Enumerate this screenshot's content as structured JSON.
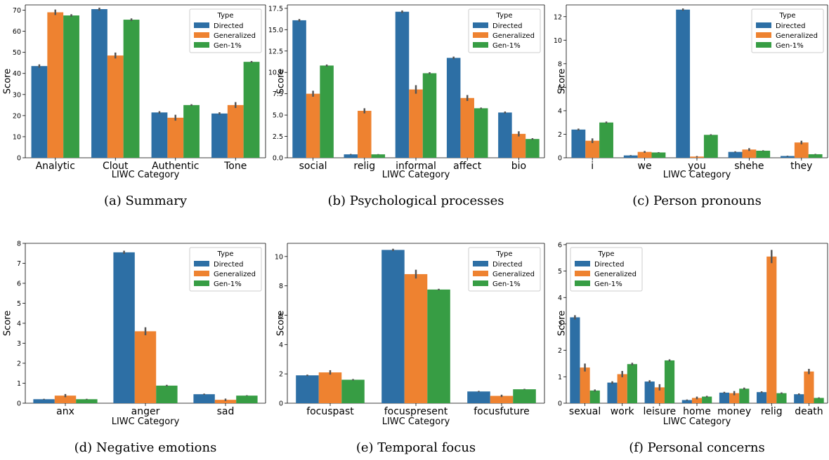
{
  "legend_title": "Type",
  "colors": {
    "Directed": "#2d6fa5",
    "Generalized": "#ee8230",
    "Gen-1%": "#379d44",
    "errorbar": "#555555"
  },
  "chart_data": [
    {
      "type": "bar",
      "caption": "(a) Summary",
      "xlabel": "LIWC Category",
      "ylabel": "Score",
      "categories": [
        "Analytic",
        "Clout",
        "Authentic",
        "Tone"
      ],
      "ylim": [
        0,
        72.5
      ],
      "yticks": [
        0,
        10,
        20,
        30,
        40,
        50,
        60,
        70
      ],
      "ytick_labels": [
        "0",
        "10",
        "20",
        "30",
        "40",
        "50",
        "60",
        "70"
      ],
      "legend_position": "top-right",
      "series": [
        {
          "name": "Directed",
          "values": [
            43.5,
            70.5,
            21.5,
            21.0
          ],
          "errors": [
            0.8,
            0.7,
            0.6,
            0.6
          ]
        },
        {
          "name": "Generalized",
          "values": [
            69.0,
            48.5,
            19.0,
            25.0
          ],
          "errors": [
            1.3,
            1.4,
            1.4,
            1.4
          ]
        },
        {
          "name": "Gen-1%",
          "values": [
            67.5,
            65.5,
            25.0,
            45.5
          ],
          "errors": [
            0.6,
            0.6,
            0.4,
            0.4
          ]
        }
      ]
    },
    {
      "type": "bar",
      "caption": "(b) Psychological processes",
      "xlabel": "LIWC Category",
      "ylabel": "Score",
      "categories": [
        "social",
        "relig",
        "informal",
        "affect",
        "bio"
      ],
      "ylim": [
        0,
        17.9
      ],
      "yticks": [
        0,
        2.5,
        5,
        7.5,
        10,
        12.5,
        15,
        17.5
      ],
      "ytick_labels": [
        "0.0",
        "2.5",
        "5.0",
        "7.5",
        "10.0",
        "12.5",
        "15.0",
        "17.5"
      ],
      "legend_position": "top-right",
      "series": [
        {
          "name": "Directed",
          "values": [
            16.1,
            0.4,
            17.1,
            11.7,
            5.3
          ],
          "errors": [
            0.15,
            0.05,
            0.15,
            0.15,
            0.12
          ]
        },
        {
          "name": "Generalized",
          "values": [
            7.5,
            5.5,
            8.0,
            7.0,
            2.8
          ],
          "errors": [
            0.35,
            0.3,
            0.5,
            0.35,
            0.3
          ]
        },
        {
          "name": "Gen-1%",
          "values": [
            10.8,
            0.4,
            9.9,
            5.8,
            2.2
          ],
          "errors": [
            0.12,
            0.03,
            0.12,
            0.08,
            0.1
          ]
        }
      ]
    },
    {
      "type": "bar",
      "caption": "(c) Person pronouns",
      "xlabel": "LIWC Category",
      "ylabel": "Score",
      "categories": [
        "i",
        "we",
        "you",
        "shehe",
        "they"
      ],
      "ylim": [
        0,
        13.0
      ],
      "yticks": [
        0,
        2,
        4,
        6,
        8,
        10,
        12
      ],
      "ytick_labels": [
        "0",
        "2",
        "4",
        "6",
        "8",
        "10",
        "12"
      ],
      "legend_position": "top-right",
      "series": [
        {
          "name": "Directed",
          "values": [
            2.4,
            0.2,
            12.6,
            0.5,
            0.15
          ],
          "errors": [
            0.08,
            0.03,
            0.1,
            0.05,
            0.03
          ]
        },
        {
          "name": "Generalized",
          "values": [
            1.45,
            0.5,
            0.1,
            0.7,
            1.3
          ],
          "errors": [
            0.2,
            0.08,
            0.05,
            0.12,
            0.15
          ]
        },
        {
          "name": "Gen-1%",
          "values": [
            3.0,
            0.45,
            1.95,
            0.6,
            0.3
          ],
          "errors": [
            0.08,
            0.03,
            0.05,
            0.04,
            0.03
          ]
        }
      ]
    },
    {
      "type": "bar",
      "caption": "(d) Negative emotions",
      "xlabel": "LIWC Category",
      "ylabel": "Score",
      "categories": [
        "anx",
        "anger",
        "sad"
      ],
      "ylim": [
        0,
        8.0
      ],
      "yticks": [
        0,
        1,
        2,
        3,
        4,
        5,
        6,
        7,
        8
      ],
      "ytick_labels": [
        "0",
        "1",
        "2",
        "3",
        "4",
        "5",
        "6",
        "7",
        "8"
      ],
      "legend_position": "top-right",
      "series": [
        {
          "name": "Directed",
          "values": [
            0.2,
            7.55,
            0.45
          ],
          "errors": [
            0.02,
            0.08,
            0.03
          ]
        },
        {
          "name": "Generalized",
          "values": [
            0.38,
            3.6,
            0.17
          ],
          "errors": [
            0.08,
            0.2,
            0.06
          ]
        },
        {
          "name": "Gen-1%",
          "values": [
            0.2,
            0.88,
            0.38
          ],
          "errors": [
            0.02,
            0.04,
            0.02
          ]
        }
      ]
    },
    {
      "type": "bar",
      "caption": "(e) Temporal focus",
      "xlabel": "LIWC Category",
      "ylabel": "Score",
      "categories": [
        "focuspast",
        "focuspresent",
        "focusfuture"
      ],
      "ylim": [
        0,
        10.9
      ],
      "yticks": [
        0,
        2,
        4,
        6,
        8,
        10
      ],
      "ytick_labels": [
        "0",
        "2",
        "4",
        "6",
        "8",
        "10"
      ],
      "legend_position": "top-right",
      "series": [
        {
          "name": "Directed",
          "values": [
            1.9,
            10.45,
            0.8
          ],
          "errors": [
            0.05,
            0.08,
            0.04
          ]
        },
        {
          "name": "Generalized",
          "values": [
            2.1,
            8.8,
            0.5
          ],
          "errors": [
            0.15,
            0.3,
            0.08
          ]
        },
        {
          "name": "Gen-1%",
          "values": [
            1.6,
            7.75,
            0.95
          ],
          "errors": [
            0.05,
            0.05,
            0.03
          ]
        }
      ]
    },
    {
      "type": "bar",
      "caption": "(f) Personal concerns",
      "xlabel": "LIWC Category",
      "ylabel": "Score",
      "categories": [
        "sexual",
        "work",
        "leisure",
        "home",
        "money",
        "relig",
        "death"
      ],
      "ylim": [
        0,
        6.05
      ],
      "yticks": [
        0,
        1,
        2,
        3,
        4,
        5,
        6
      ],
      "ytick_labels": [
        "0",
        "1",
        "2",
        "3",
        "4",
        "5",
        "6"
      ],
      "legend_position": "top-left",
      "series": [
        {
          "name": "Directed",
          "values": [
            3.25,
            0.78,
            0.82,
            0.12,
            0.4,
            0.42,
            0.34
          ],
          "errors": [
            0.08,
            0.05,
            0.05,
            0.02,
            0.03,
            0.03,
            0.03
          ]
        },
        {
          "name": "Generalized",
          "values": [
            1.35,
            1.1,
            0.6,
            0.2,
            0.38,
            5.55,
            1.2
          ],
          "errors": [
            0.15,
            0.12,
            0.12,
            0.05,
            0.08,
            0.25,
            0.1
          ]
        },
        {
          "name": "Gen-1%",
          "values": [
            0.48,
            1.48,
            1.62,
            0.25,
            0.55,
            0.38,
            0.2
          ],
          "errors": [
            0.04,
            0.05,
            0.04,
            0.03,
            0.04,
            0.03,
            0.02
          ]
        }
      ]
    }
  ]
}
